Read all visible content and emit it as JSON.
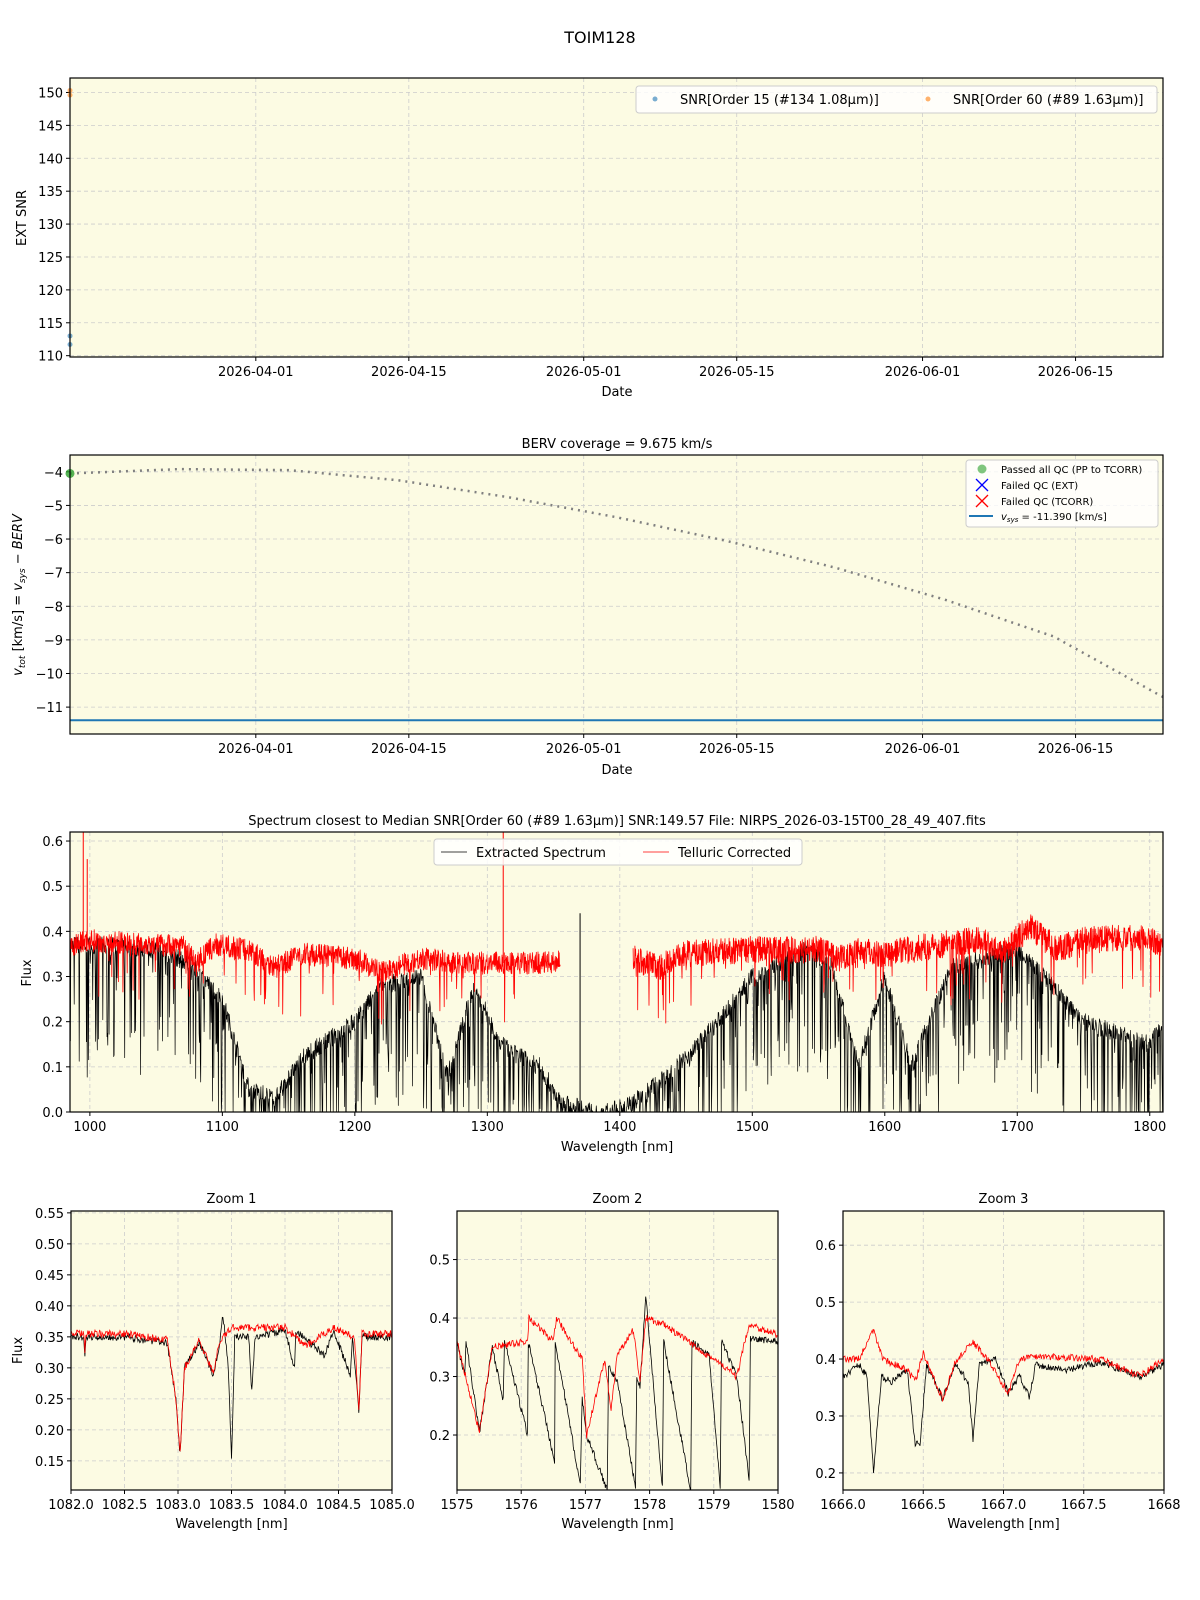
{
  "figure": {
    "title": "TOIM128",
    "background": "#ffffff",
    "axes_facecolor": "#fcfbe3",
    "grid_color": "#cccccc"
  },
  "chart_data": [
    {
      "id": "snr",
      "type": "scatter",
      "title": "",
      "xlabel": "Date",
      "ylabel": "EXT SNR",
      "x_ticks": [
        "2026-04-01",
        "2026-04-15",
        "2026-05-01",
        "2026-05-15",
        "2026-06-01",
        "2026-06-15"
      ],
      "xlim": [
        "2026-03-15",
        "2026-06-23"
      ],
      "ylim": [
        109.8,
        152.2
      ],
      "y_ticks": [
        110,
        115,
        120,
        125,
        130,
        135,
        140,
        145,
        150
      ],
      "legend_position": "upper right",
      "series": [
        {
          "name": "SNR[Order 15 (#134 1.08μm)]",
          "color": "#1f77b4",
          "points": [
            {
              "x": "2026-03-15",
              "y": 111.7
            },
            {
              "x": "2026-03-15",
              "y": 113.0
            }
          ]
        },
        {
          "name": "SNR[Order 60 (#89 1.63μm)]",
          "color": "#ff7f0e",
          "points": [
            {
              "x": "2026-03-15",
              "y": 149.6
            },
            {
              "x": "2026-03-15",
              "y": 150.3
            }
          ]
        }
      ]
    },
    {
      "id": "berv",
      "type": "line",
      "title": "BERV coverage = 9.675 km/s",
      "xlabel": "Date",
      "ylabel": "v_tot [km/s] = v_sys − BERV",
      "x_ticks": [
        "2026-04-01",
        "2026-04-15",
        "2026-05-01",
        "2026-05-15",
        "2026-06-01",
        "2026-06-15"
      ],
      "xlim": [
        "2026-03-15",
        "2026-06-23"
      ],
      "ylim": [
        -11.8,
        -3.5
      ],
      "y_ticks": [
        -4,
        -5,
        -6,
        -7,
        -8,
        -9,
        -10,
        -11
      ],
      "legend_position": "upper right",
      "legend": [
        {
          "label": "Passed all QC (PP to TCORR)",
          "marker": "circle",
          "color": "#2ca02c"
        },
        {
          "label": "Failed QC (EXT)",
          "marker": "x",
          "color": "#0000ff"
        },
        {
          "label": "Failed QC (TCORR)",
          "marker": "x",
          "color": "#ff0000"
        },
        {
          "label": "v_sys = -11.390 [km/s]",
          "marker": "line",
          "color": "#1f77b4"
        }
      ],
      "vsys": -11.39,
      "berv_curve": {
        "style": "dotted",
        "color": "#808080",
        "x_days_from_start": [
          0,
          10,
          20,
          30,
          40,
          50,
          60,
          70,
          80,
          90,
          100
        ],
        "y": [
          -4.05,
          -3.92,
          -3.95,
          -4.25,
          -4.75,
          -5.35,
          -6.05,
          -6.85,
          -7.8,
          -8.9,
          -10.7
        ]
      },
      "passed_points": [
        {
          "x": "2026-03-15",
          "y": -4.05
        }
      ]
    },
    {
      "id": "spectrum",
      "type": "line",
      "title": "Spectrum closest to Median SNR[Order 60 (#89 1.63μm)]     SNR:149.57     File: NIRPS_2026-03-15T00_28_49_407.fits",
      "xlabel": "Wavelength [nm]",
      "ylabel": "Flux",
      "xlim": [
        985,
        1810
      ],
      "ylim": [
        0.0,
        0.62
      ],
      "x_ticks": [
        1000,
        1100,
        1200,
        1300,
        1400,
        1500,
        1600,
        1700,
        1800
      ],
      "y_ticks": [
        0.0,
        0.1,
        0.2,
        0.3,
        0.4,
        0.5,
        0.6
      ],
      "legend_position": "upper center",
      "series": [
        {
          "name": "Extracted Spectrum",
          "color": "#000000",
          "x": [
            985,
            1000,
            1050,
            1075,
            1100,
            1120,
            1140,
            1160,
            1200,
            1220,
            1250,
            1270,
            1290,
            1310,
            1340,
            1355,
            1370,
            1380,
            1390,
            1410,
            1450,
            1480,
            1500,
            1540,
            1560,
            1580,
            1600,
            1620,
            1650,
            1700,
            1720,
            1750,
            1800,
            1810
          ],
          "y": [
            0.37,
            0.37,
            0.36,
            0.33,
            0.25,
            0.05,
            0.03,
            0.12,
            0.2,
            0.28,
            0.3,
            0.08,
            0.28,
            0.15,
            0.1,
            0.02,
            0.01,
            0.0,
            0.0,
            0.02,
            0.12,
            0.22,
            0.3,
            0.36,
            0.33,
            0.1,
            0.3,
            0.1,
            0.32,
            0.36,
            0.3,
            0.2,
            0.15,
            0.2
          ]
        },
        {
          "name": "Telluric Corrected",
          "color": "#ff0000",
          "x": [
            985,
            1000,
            1050,
            1070,
            1080,
            1095,
            1120,
            1140,
            1160,
            1200,
            1220,
            1250,
            1280,
            1300,
            1350,
            1355,
            1410,
            1430,
            1450,
            1500,
            1550,
            1565,
            1580,
            1600,
            1640,
            1670,
            1690,
            1710,
            1730,
            1750,
            1800,
            1810
          ],
          "y": [
            0.37,
            0.38,
            0.37,
            0.37,
            0.33,
            0.37,
            0.36,
            0.32,
            0.35,
            0.34,
            0.31,
            0.34,
            0.33,
            0.33,
            0.33,
            0.34,
            0.34,
            0.32,
            0.35,
            0.36,
            0.36,
            0.34,
            0.36,
            0.35,
            0.37,
            0.38,
            0.36,
            0.41,
            0.36,
            0.38,
            0.39,
            0.36
          ]
        }
      ],
      "annotations": [
        "spike near 995 nm to >0.6",
        "spike near 1312 nm to >0.6",
        "gap 1355-1410 nm (telluric corrected)"
      ]
    },
    {
      "id": "zoom1",
      "type": "line",
      "title": "Zoom 1",
      "xlabel": "Wavelength [nm]",
      "ylabel": "Flux",
      "xlim": [
        1082.0,
        1085.0
      ],
      "ylim": [
        0.103,
        0.553
      ],
      "x_ticks": [
        "1082.0",
        "1082.5",
        "1083.0",
        "1083.5",
        "1084.0",
        "1084.5",
        "1085.0"
      ],
      "y_ticks": [
        "0.15",
        "0.20",
        "0.25",
        "0.30",
        "0.35",
        "0.40",
        "0.45",
        "0.50",
        "0.55"
      ],
      "series": [
        {
          "name": "Extracted Spectrum",
          "color": "#000000",
          "x": [
            1082.0,
            1082.12,
            1082.13,
            1082.14,
            1082.5,
            1082.9,
            1082.98,
            1083.02,
            1083.06,
            1083.2,
            1083.33,
            1083.38,
            1083.42,
            1083.47,
            1083.5,
            1083.53,
            1083.66,
            1083.69,
            1083.72,
            1084.0,
            1084.09,
            1084.1,
            1084.37,
            1084.45,
            1084.61,
            1084.63,
            1084.69,
            1084.72,
            1085.0
          ],
          "y": [
            0.35,
            0.35,
            0.32,
            0.35,
            0.35,
            0.34,
            0.25,
            0.16,
            0.3,
            0.34,
            0.29,
            0.33,
            0.385,
            0.3,
            0.15,
            0.35,
            0.35,
            0.26,
            0.35,
            0.36,
            0.3,
            0.36,
            0.32,
            0.36,
            0.29,
            0.35,
            0.23,
            0.35,
            0.35
          ]
        },
        {
          "name": "Telluric Corrected",
          "color": "#ff0000",
          "x": [
            1082.0,
            1082.12,
            1082.13,
            1082.14,
            1082.5,
            1082.9,
            1082.98,
            1083.02,
            1083.06,
            1083.2,
            1083.33,
            1083.38,
            1083.5,
            1084.0,
            1084.2,
            1084.45,
            1084.65,
            1084.69,
            1084.72,
            1085.0
          ],
          "y": [
            0.355,
            0.355,
            0.32,
            0.355,
            0.355,
            0.345,
            0.25,
            0.16,
            0.3,
            0.345,
            0.29,
            0.34,
            0.365,
            0.365,
            0.335,
            0.365,
            0.35,
            0.23,
            0.355,
            0.355
          ]
        }
      ]
    },
    {
      "id": "zoom2",
      "type": "line",
      "title": "Zoom 2",
      "xlabel": "Wavelength [nm]",
      "ylabel": "",
      "xlim": [
        1575,
        1580
      ],
      "ylim": [
        0.106,
        0.583
      ],
      "x_ticks": [
        "1575",
        "1576",
        "1577",
        "1578",
        "1579",
        "1580"
      ],
      "y_ticks": [
        "0.2",
        "0.3",
        "0.4",
        "0.5"
      ],
      "series": [
        {
          "name": "Extracted Spectrum",
          "color": "#000000",
          "x": [
            1575.0,
            1575.12,
            1575.14,
            1575.35,
            1575.55,
            1575.72,
            1575.74,
            1576.1,
            1576.11,
            1576.52,
            1576.53,
            1576.92,
            1576.95,
            1577.02,
            1577.34,
            1577.36,
            1577.5,
            1577.78,
            1577.8,
            1577.85,
            1577.94,
            1578.0,
            1578.2,
            1578.22,
            1578.64,
            1578.66,
            1578.93,
            1579.1,
            1579.12,
            1579.36,
            1579.55,
            1579.57,
            1580.0
          ],
          "y": [
            0.36,
            0.3,
            0.36,
            0.205,
            0.35,
            0.26,
            0.36,
            0.2,
            0.36,
            0.155,
            0.36,
            0.115,
            0.26,
            0.2,
            0.105,
            0.32,
            0.29,
            0.11,
            0.3,
            0.28,
            0.44,
            0.36,
            0.11,
            0.36,
            0.105,
            0.36,
            0.335,
            0.11,
            0.36,
            0.3,
            0.125,
            0.365,
            0.36
          ]
        },
        {
          "name": "Telluric Corrected",
          "color": "#ff0000",
          "x": [
            1575.0,
            1575.35,
            1575.55,
            1576.1,
            1576.12,
            1576.5,
            1576.55,
            1576.95,
            1577.02,
            1577.3,
            1577.4,
            1577.5,
            1577.75,
            1577.85,
            1577.94,
            1578.2,
            1578.93,
            1579.36,
            1579.55,
            1580.0
          ],
          "y": [
            0.36,
            0.205,
            0.35,
            0.36,
            0.4,
            0.36,
            0.4,
            0.33,
            0.2,
            0.33,
            0.24,
            0.34,
            0.38,
            0.29,
            0.4,
            0.39,
            0.335,
            0.3,
            0.39,
            0.37
          ]
        }
      ]
    },
    {
      "id": "zoom3",
      "type": "line",
      "title": "Zoom 3",
      "xlabel": "Wavelength [nm]",
      "ylabel": "",
      "xlim": [
        1666.0,
        1668.0
      ],
      "ylim": [
        0.17,
        0.66
      ],
      "x_ticks": [
        "1666.0",
        "1666.5",
        "1667.0",
        "1667.5",
        "1668"
      ],
      "y_ticks": [
        "0.2",
        "0.3",
        "0.4",
        "0.5",
        "0.6"
      ],
      "series": [
        {
          "name": "Extracted Spectrum",
          "color": "#000000",
          "x": [
            1666.0,
            1666.1,
            1666.15,
            1666.19,
            1666.24,
            1666.3,
            1666.4,
            1666.45,
            1666.48,
            1666.52,
            1666.62,
            1666.7,
            1666.78,
            1666.81,
            1666.85,
            1666.95,
            1667.03,
            1667.1,
            1667.16,
            1667.2,
            1667.4,
            1667.6,
            1667.85,
            1668.0
          ],
          "y": [
            0.37,
            0.39,
            0.37,
            0.2,
            0.37,
            0.36,
            0.38,
            0.25,
            0.25,
            0.39,
            0.33,
            0.39,
            0.36,
            0.26,
            0.39,
            0.4,
            0.34,
            0.37,
            0.335,
            0.39,
            0.38,
            0.395,
            0.37,
            0.39
          ]
        },
        {
          "name": "Telluric Corrected",
          "color": "#ff0000",
          "x": [
            1666.0,
            1666.1,
            1666.19,
            1666.25,
            1666.4,
            1666.45,
            1666.5,
            1666.62,
            1666.7,
            1666.81,
            1666.9,
            1667.03,
            1667.1,
            1667.2,
            1667.6,
            1667.85,
            1668.0
          ],
          "y": [
            0.4,
            0.4,
            0.45,
            0.4,
            0.38,
            0.36,
            0.41,
            0.33,
            0.395,
            0.43,
            0.4,
            0.34,
            0.4,
            0.405,
            0.4,
            0.37,
            0.4
          ]
        }
      ]
    }
  ],
  "labels": {
    "snr_legend_1": "SNR[Order 15 (#134 1.08μm)]",
    "snr_legend_2": "SNR[Order 60 (#89 1.63μm)]",
    "spec_legend_1": "Extracted Spectrum",
    "spec_legend_2": "Telluric Corrected",
    "berv_title": "BERV coverage = 9.675 km/s",
    "berv_legend_1": "Passed all QC (PP to TCORR)",
    "berv_legend_2": "Failed QC (EXT)",
    "berv_legend_3": "Failed QC (TCORR)",
    "berv_legend_4": " = -11.390 [km/s]",
    "spec_title": "Spectrum closest to Median SNR[Order 60 (#89 1.63μm)]     SNR:149.57     File: NIRPS_2026-03-15T00_28_49_407.fits",
    "date_label": "Date",
    "wavelength_label": "Wavelength [nm]",
    "flux_label": "Flux",
    "ext_snr_label": "EXT SNR"
  }
}
